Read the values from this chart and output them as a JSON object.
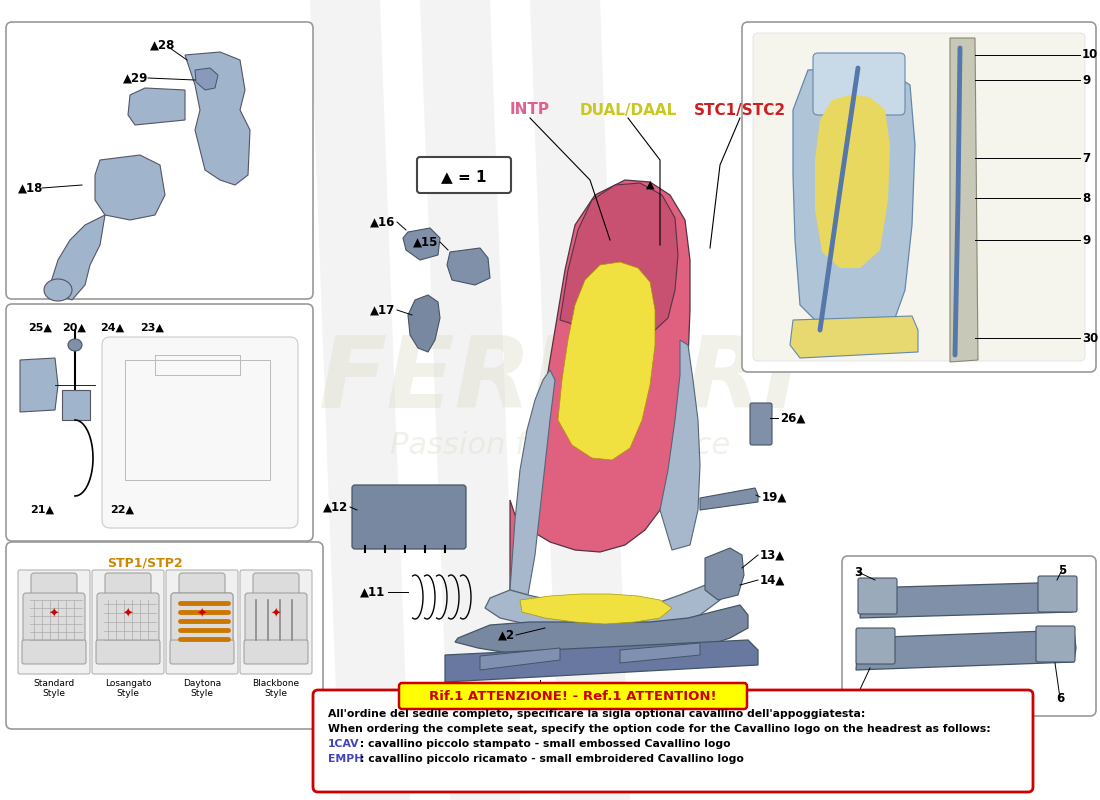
{
  "bg_color": "#ffffff",
  "main_seat_pink": "#e06080",
  "main_seat_yellow": "#f0e040",
  "main_seat_blue": "#a8b8cc",
  "seat_dark_pink": "#c85070",
  "part_blue": "#a0b4cc",
  "part_dark_blue": "#8090a8",
  "legend_intp_color": "#e06090",
  "legend_dual_color": "#c8c820",
  "legend_stc_color": "#cc2020",
  "stp_color": "#cc8800",
  "attn_border": "#cc0000",
  "attn_bg": "#ffff00",
  "attn_title": "Rif.1 ATTENZIONE! - Ref.1 ATTENTION!",
  "line1": "All'ordine del sedile completo, specificare la sigla optional cavallino dell'appoggiatesta:",
  "line2": "When ordering the complete seat, specify the option code for the Cavallino logo on the headrest as follows:",
  "line3a": "1CAV",
  "line3b": " : cavallino piccolo stampato - small embossed Cavallino logo",
  "line4a": "EMPH",
  "line4b": ": cavallino piccolo ricamato - small embroidered Cavallino logo",
  "cav_color": "#4444bb",
  "style_labels": [
    "Standard\nStyle",
    "Losangato\nStyle",
    "Daytona\nStyle",
    "Blackbone\nStyle"
  ]
}
